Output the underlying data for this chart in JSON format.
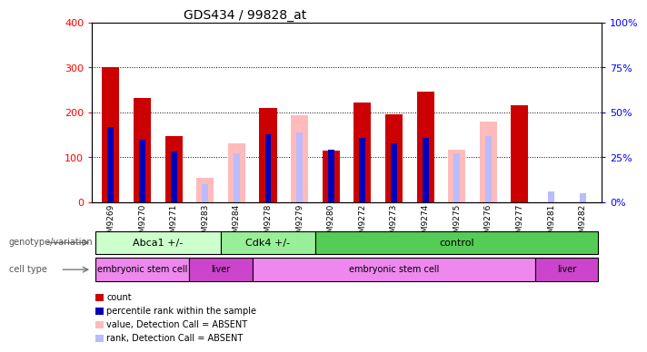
{
  "title": "GDS434 / 99828_at",
  "samples": [
    "GSM9269",
    "GSM9270",
    "GSM9271",
    "GSM9283",
    "GSM9284",
    "GSM9278",
    "GSM9279",
    "GSM9280",
    "GSM9272",
    "GSM9273",
    "GSM9274",
    "GSM9275",
    "GSM9276",
    "GSM9277",
    "GSM9281",
    "GSM9282"
  ],
  "count_values": [
    300,
    232,
    148,
    0,
    0,
    210,
    0,
    115,
    222,
    195,
    247,
    0,
    0,
    215,
    0,
    0
  ],
  "rank_pct": [
    42,
    35,
    28,
    0,
    0,
    38,
    0,
    29,
    36,
    33,
    36,
    0,
    0,
    0,
    0,
    0
  ],
  "absent_count": [
    0,
    0,
    0,
    55,
    132,
    0,
    193,
    0,
    0,
    0,
    0,
    117,
    180,
    0,
    0,
    0
  ],
  "absent_rank_pct": [
    0,
    0,
    0,
    10,
    27,
    0,
    39,
    0,
    0,
    0,
    0,
    27,
    37,
    0,
    6,
    5
  ],
  "count_color": "#cc0000",
  "rank_color": "#0000bb",
  "absent_count_color": "#ffbbbb",
  "absent_rank_color": "#bbbbff",
  "ylim_left": [
    0,
    400
  ],
  "ylim_right": [
    0,
    100
  ],
  "yticks_left": [
    0,
    100,
    200,
    300,
    400
  ],
  "yticks_right": [
    0,
    25,
    50,
    75,
    100
  ],
  "grid_lines": [
    100,
    200,
    300
  ],
  "genotype_groups": [
    {
      "label": "Abca1 +/-",
      "start": 0,
      "end": 4,
      "color": "#ccffcc"
    },
    {
      "label": "Cdk4 +/-",
      "start": 4,
      "end": 7,
      "color": "#99ee99"
    },
    {
      "label": "control",
      "start": 7,
      "end": 16,
      "color": "#55cc55"
    }
  ],
  "celltype_groups": [
    {
      "label": "embryonic stem cell",
      "start": 0,
      "end": 3,
      "color": "#ee88ee"
    },
    {
      "label": "liver",
      "start": 3,
      "end": 5,
      "color": "#cc44cc"
    },
    {
      "label": "embryonic stem cell",
      "start": 5,
      "end": 14,
      "color": "#ee88ee"
    },
    {
      "label": "liver",
      "start": 14,
      "end": 16,
      "color": "#cc44cc"
    }
  ],
  "legend_items": [
    {
      "label": "count",
      "color": "#cc0000"
    },
    {
      "label": "percentile rank within the sample",
      "color": "#0000bb"
    },
    {
      "label": "value, Detection Call = ABSENT",
      "color": "#ffbbbb"
    },
    {
      "label": "rank, Detection Call = ABSENT",
      "color": "#bbbbff"
    }
  ]
}
